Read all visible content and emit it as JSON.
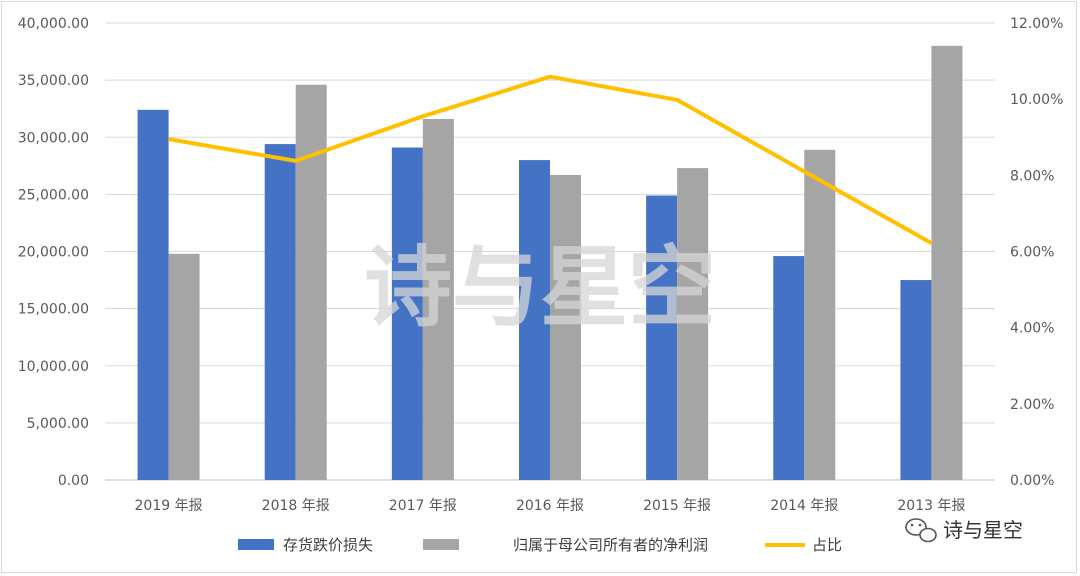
{
  "chart_data": {
    "type": "bar",
    "categories": [
      "2019 年报",
      "2018 年报",
      "2017 年报",
      "2016 年报",
      "2015 年报",
      "2014 年报",
      "2013 年报"
    ],
    "series": [
      {
        "name": "存货跌价损失",
        "type": "bar",
        "axis": "left",
        "color": "#4472C4",
        "values": [
          32400,
          29400,
          29100,
          28000,
          24900,
          19600,
          17500
        ]
      },
      {
        "name": "归属于母公司所有者的净利润",
        "type": "bar",
        "axis": "left",
        "color": "#A5A5A5",
        "values": [
          19800,
          34600,
          31600,
          26700,
          27300,
          28900,
          38000
        ]
      },
      {
        "name": "占比",
        "type": "line",
        "axis": "right",
        "color": "#FFC000",
        "values": [
          0.0895,
          0.0838,
          0.0955,
          0.1059,
          0.0998,
          0.081,
          0.0622
        ]
      }
    ],
    "y_left": {
      "min": 0,
      "max": 40000,
      "step": 5000,
      "ticks": [
        "0.00",
        "5,000.00",
        "10,000.00",
        "15,000.00",
        "20,000.00",
        "25,000.00",
        "30,000.00",
        "35,000.00",
        "40,000.00"
      ]
    },
    "y_right": {
      "min": 0,
      "max": 0.12,
      "step": 0.02,
      "ticks": [
        "0.00%",
        "2.00%",
        "4.00%",
        "6.00%",
        "8.00%",
        "10.00%",
        "12.00%"
      ]
    },
    "grid": true,
    "legend_position": "bottom",
    "watermark": "诗与星空",
    "brand": "诗与星空"
  }
}
